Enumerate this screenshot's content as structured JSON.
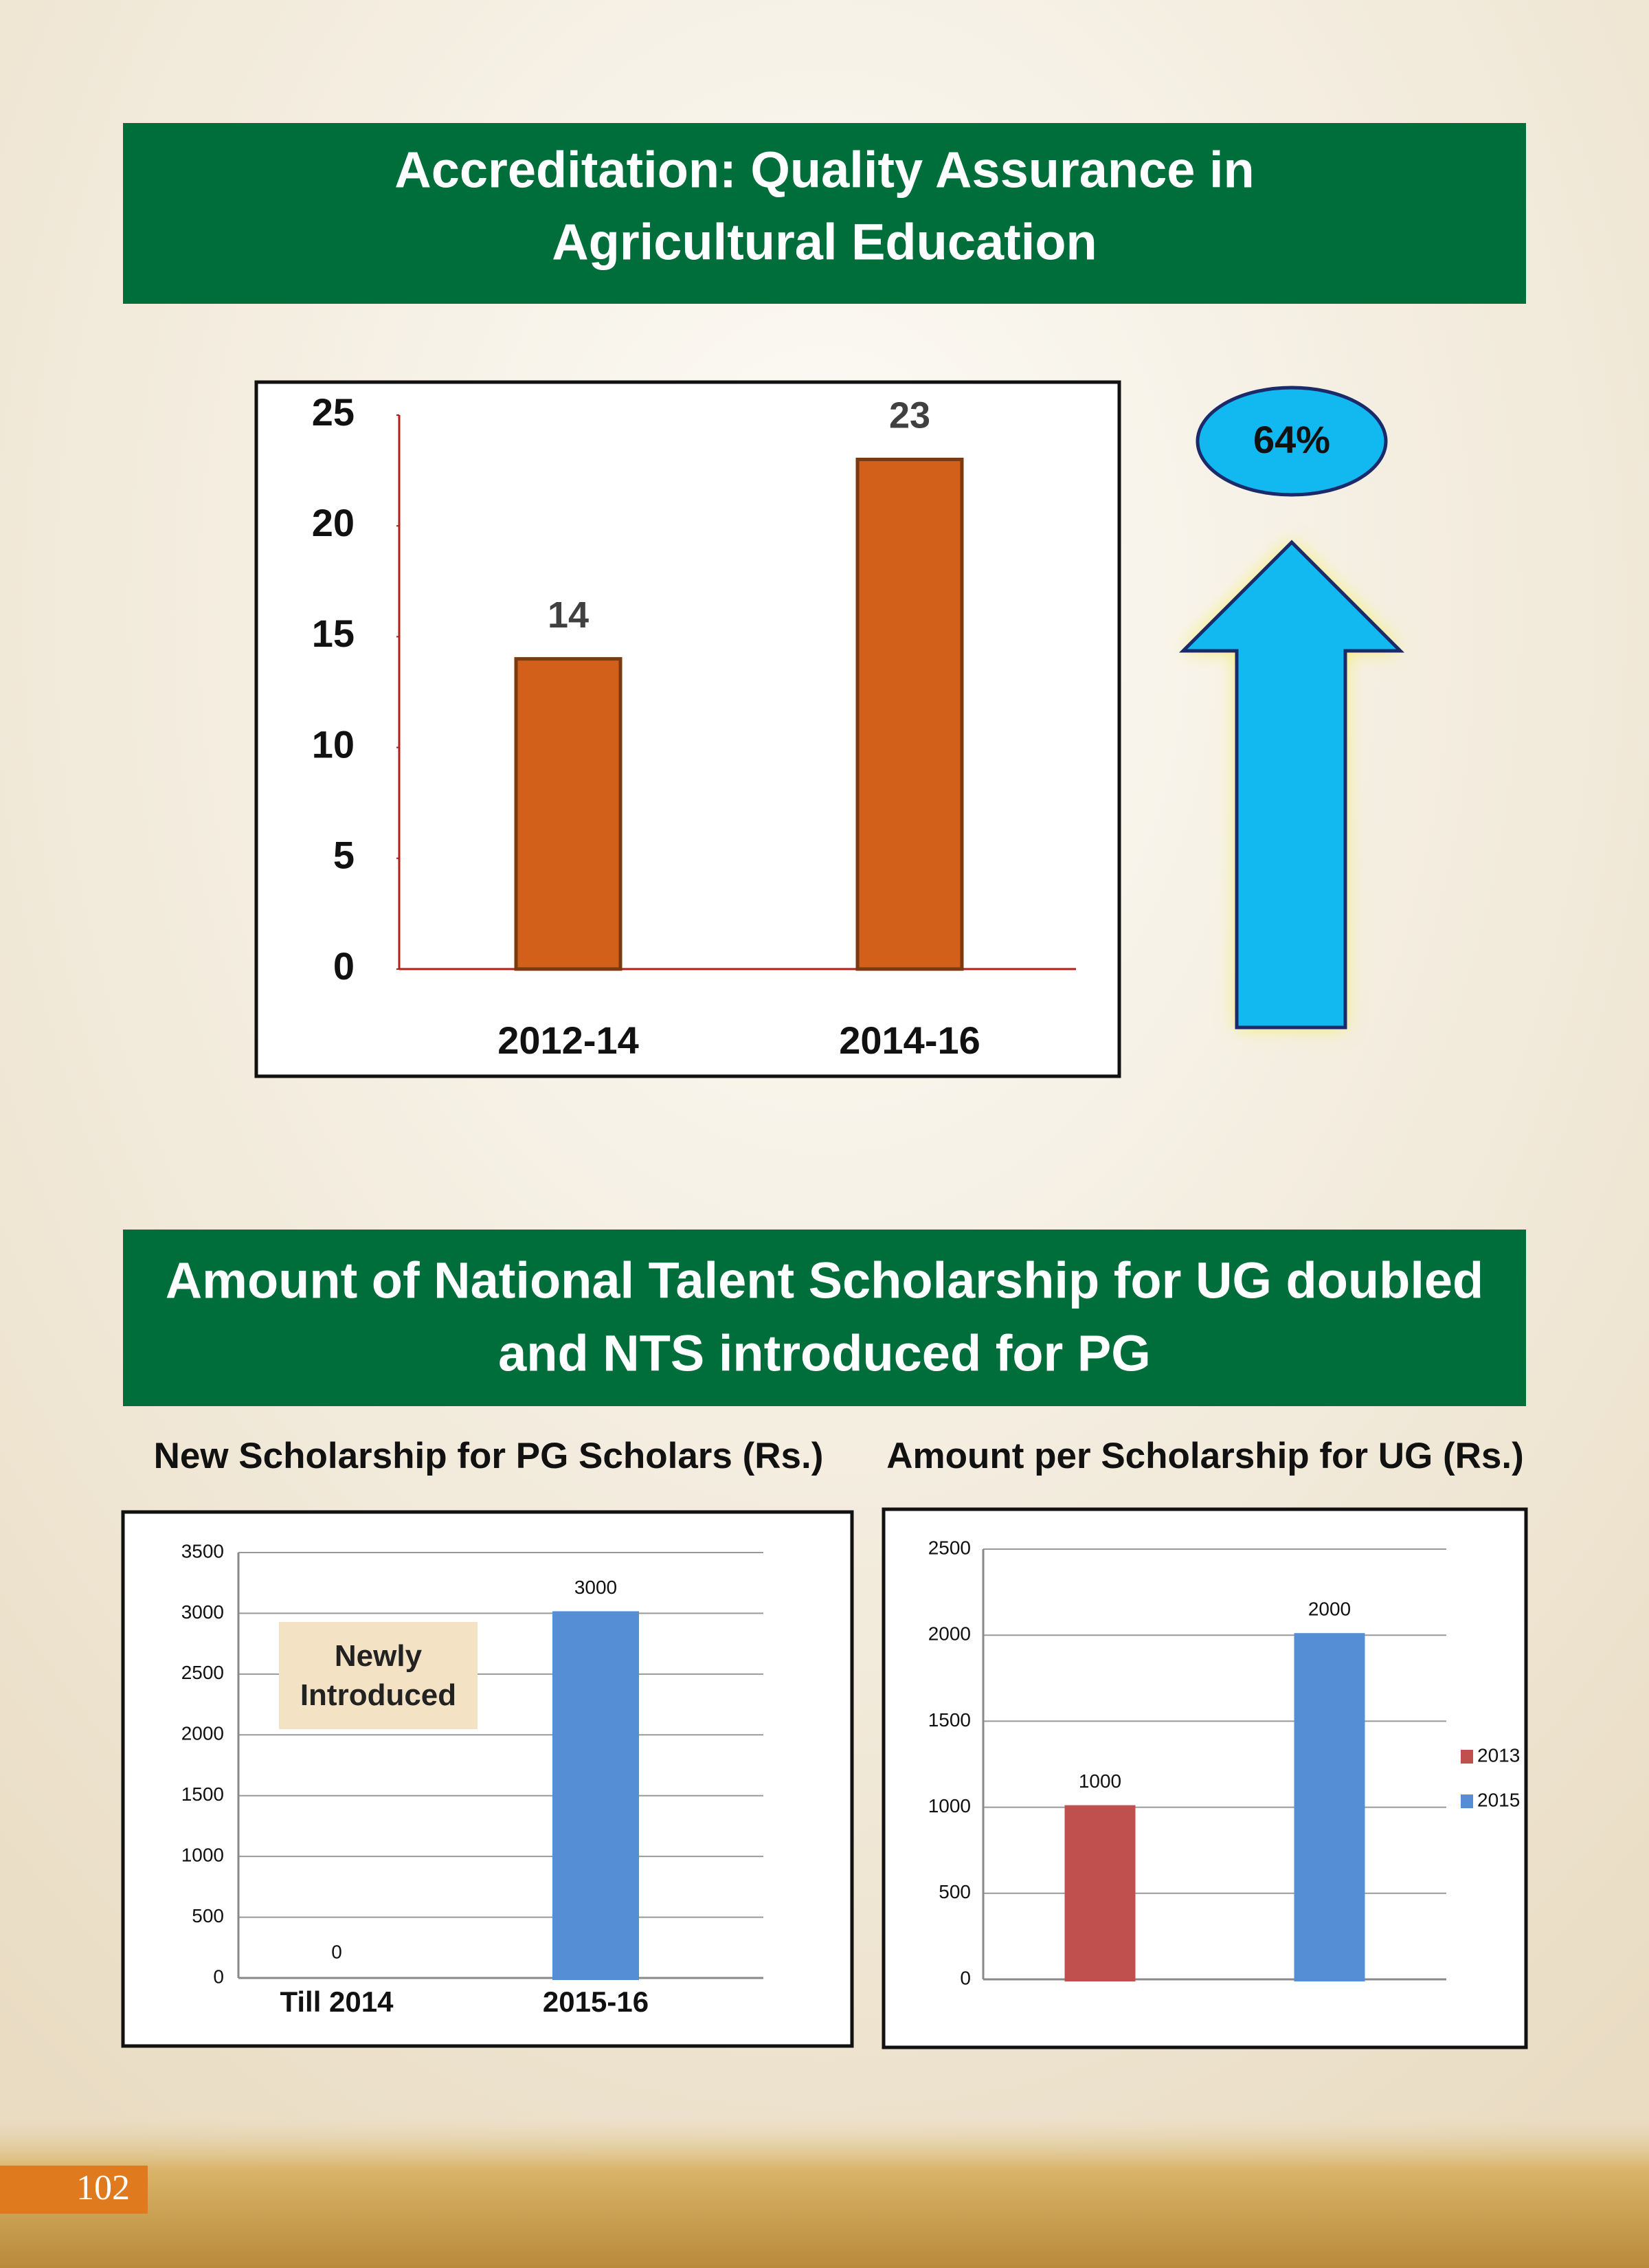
{
  "sections": [
    {
      "title_lines": [
        "Accreditation: Quality Assurance in",
        "Agricultural Education"
      ]
    },
    {
      "title_lines": [
        "Amount of  National Talent Scholarship for UG doubled",
        "and NTS introduced for PG"
      ]
    }
  ],
  "growth_label": "64%",
  "page_number": "102",
  "chart_data": [
    {
      "type": "bar",
      "categories": [
        "2012-14",
        "2014-16"
      ],
      "values": [
        14,
        23
      ],
      "color": "#d2601a",
      "ylim": [
        0,
        25
      ],
      "yticks": [
        0,
        5,
        10,
        15,
        20,
        25
      ],
      "grid": false
    },
    {
      "type": "bar",
      "title": "New Scholarship for PG Scholars (Rs.)",
      "categories": [
        "Till 2014",
        "2015-16"
      ],
      "values": [
        0,
        3000
      ],
      "colors": [
        "#a31515",
        "#558ed5"
      ],
      "annotation": "Newly Introduced",
      "ylim": [
        0,
        3500
      ],
      "yticks": [
        0,
        500,
        1000,
        1500,
        2000,
        2500,
        3000,
        3500
      ],
      "grid": true
    },
    {
      "type": "grouped-bar",
      "title": "Amount per Scholarship for UG (Rs.)",
      "categories": [
        null
      ],
      "series": [
        {
          "name": "2013",
          "color": "#c0504d",
          "values": [
            1000
          ]
        },
        {
          "name": "2015",
          "color": "#558ed5",
          "values": [
            2000
          ]
        }
      ],
      "ylim": [
        0,
        2500
      ],
      "yticks": [
        0,
        500,
        1000,
        1500,
        2000,
        2500
      ],
      "grid": true,
      "legend": "right"
    }
  ]
}
